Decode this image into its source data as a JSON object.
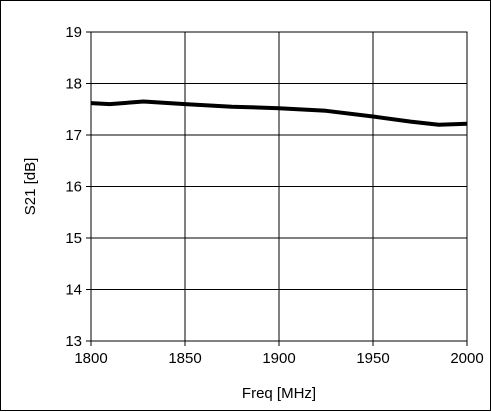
{
  "chart_data": {
    "type": "line",
    "title": "",
    "xlabel": "Freq [MHz]",
    "ylabel": "S21 [dB]",
    "xlim": [
      1800,
      2000
    ],
    "ylim": [
      13,
      19
    ],
    "x_ticks": [
      1800,
      1850,
      1900,
      1950,
      2000
    ],
    "y_ticks": [
      13,
      14,
      15,
      16,
      17,
      18,
      19
    ],
    "grid": true,
    "legend": "none",
    "series": [
      {
        "color": "#000000",
        "x": [
          1800,
          1810,
          1828,
          1850,
          1875,
          1900,
          1925,
          1950,
          1970,
          1985,
          2000
        ],
        "y": [
          17.62,
          17.6,
          17.65,
          17.6,
          17.55,
          17.52,
          17.47,
          17.36,
          17.26,
          17.2,
          17.22
        ]
      }
    ]
  }
}
